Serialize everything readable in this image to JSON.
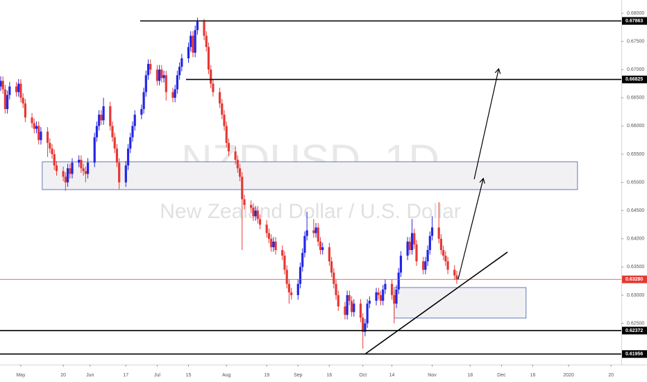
{
  "chart_data": {
    "type": "candlestick",
    "title": "NZDUSD, 1D",
    "subtitle": "New Zealand Dollar / U.S. Dollar",
    "up_color": "#2326e4",
    "down_color": "#e53935",
    "grid": false,
    "xlim": [
      -8.3,
      269.6
    ],
    "xticks": [
      {
        "value": 1,
        "label": "May"
      },
      20,
      {
        "value": 32,
        "label": "Jun"
      },
      {
        "value": 48,
        "label": "17"
      },
      {
        "value": 62,
        "label": "Jul"
      },
      {
        "value": 76,
        "label": "15"
      },
      {
        "value": 93,
        "label": "Aug"
      },
      {
        "value": 111,
        "label": "19"
      },
      {
        "value": 125,
        "label": "Sep"
      },
      {
        "value": 139,
        "label": "16"
      },
      {
        "value": 154,
        "label": "Oct"
      },
      {
        "value": 167,
        "label": "14"
      },
      {
        "value": 185,
        "label": "Nov"
      },
      {
        "value": 202,
        "label": "18"
      },
      {
        "value": 216,
        "label": "Dec"
      },
      {
        "value": 230,
        "label": "16"
      },
      {
        "value": 246,
        "label": "2020"
      },
      {
        "value": 265,
        "label": "20"
      }
    ],
    "ylim": [
      0.61768,
      0.68234
    ],
    "yticks": [
      {
        "value": 0.68,
        "label": "0.68000"
      },
      {
        "value": 0.675,
        "label": "0.67500"
      },
      {
        "value": 0.67,
        "label": "0.67000"
      },
      {
        "value": 0.665,
        "label": "0.66500"
      },
      {
        "value": 0.66,
        "label": "0.66000"
      },
      {
        "value": 0.655,
        "label": "0.65500"
      },
      {
        "value": 0.65,
        "label": "0.65000"
      },
      {
        "value": 0.645,
        "label": "0.64500"
      },
      {
        "value": 0.64,
        "label": "0.64000"
      },
      {
        "value": 0.635,
        "label": "0.63500"
      },
      {
        "value": 0.63,
        "label": "0.63000"
      },
      {
        "value": 0.625,
        "label": "0.62500"
      }
    ],
    "x": [
      -8,
      -7,
      -6,
      -5,
      -4,
      -1,
      0,
      1,
      2,
      3,
      6,
      7,
      8,
      9,
      10,
      13,
      14,
      15,
      16,
      17,
      20,
      21,
      22,
      23,
      24,
      27,
      28,
      29,
      30,
      31,
      34,
      35,
      36,
      37,
      38,
      41,
      42,
      43,
      44,
      45,
      48,
      49,
      50,
      51,
      52,
      55,
      56,
      57,
      58,
      59,
      62,
      63,
      64,
      65,
      66,
      69,
      70,
      71,
      72,
      73,
      76,
      77,
      78,
      79,
      80,
      83,
      84,
      85,
      86,
      87,
      90,
      91,
      92,
      93,
      94,
      97,
      98,
      99,
      100,
      101,
      104,
      105,
      106,
      107,
      108,
      111,
      112,
      113,
      114,
      115,
      118,
      119,
      120,
      121,
      122,
      125,
      126,
      127,
      128,
      129,
      132,
      133,
      134,
      135,
      136,
      139,
      140,
      141,
      142,
      143,
      146,
      147,
      148,
      149,
      150,
      153,
      154,
      155,
      156,
      157,
      160,
      161,
      162,
      163,
      164,
      167,
      168,
      169,
      170,
      171,
      174,
      175,
      176,
      177,
      178,
      181,
      182,
      183,
      184,
      185,
      188,
      189,
      190,
      191,
      192,
      195,
      196
    ],
    "ohlc": [
      [
        0.667,
        0.6688,
        0.6662,
        0.668
      ],
      [
        0.668,
        0.6688,
        0.6657,
        0.6665
      ],
      [
        0.6665,
        0.6673,
        0.6622,
        0.663
      ],
      [
        0.663,
        0.6663,
        0.6622,
        0.6655
      ],
      [
        0.6655,
        0.6678,
        0.6647,
        0.667
      ],
      [
        0.667,
        0.6678,
        0.6652,
        0.666
      ],
      [
        0.666,
        0.6683,
        0.6652,
        0.6675
      ],
      [
        0.6675,
        0.6683,
        0.6642,
        0.665
      ],
      [
        0.665,
        0.6658,
        0.6632,
        0.664
      ],
      [
        0.664,
        0.6648,
        0.6607,
        0.6615
      ],
      [
        0.6615,
        0.6623,
        0.6597,
        0.6605
      ],
      [
        0.6605,
        0.6613,
        0.6587,
        0.6595
      ],
      [
        0.6595,
        0.6608,
        0.6587,
        0.66
      ],
      [
        0.66,
        0.6608,
        0.6567,
        0.6575
      ],
      [
        0.6575,
        0.6598,
        0.6567,
        0.659
      ],
      [
        0.659,
        0.6598,
        0.6545,
        0.657
      ],
      [
        0.657,
        0.6578,
        0.6552,
        0.656
      ],
      [
        0.656,
        0.6568,
        0.6542,
        0.655
      ],
      [
        0.655,
        0.6558,
        0.6522,
        0.653
      ],
      [
        0.653,
        0.6538,
        0.6512,
        0.652
      ],
      [
        0.652,
        0.6528,
        0.6502,
        0.651
      ],
      [
        0.651,
        0.6518,
        0.6485,
        0.65
      ],
      [
        0.65,
        0.6533,
        0.6492,
        0.6525
      ],
      [
        0.6525,
        0.6533,
        0.6507,
        0.6515
      ],
      [
        0.6515,
        0.6543,
        0.6507,
        0.6535
      ],
      [
        0.6535,
        0.6548,
        0.6527,
        0.654
      ],
      [
        0.654,
        0.6548,
        0.6517,
        0.6525
      ],
      [
        0.6525,
        0.6533,
        0.6512,
        0.652
      ],
      [
        0.652,
        0.6528,
        0.65,
        0.6515
      ],
      [
        0.6515,
        0.6543,
        0.6507,
        0.6535
      ],
      [
        0.6535,
        0.6588,
        0.6527,
        0.658
      ],
      [
        0.658,
        0.6608,
        0.6572,
        0.66
      ],
      [
        0.66,
        0.6628,
        0.6592,
        0.662
      ],
      [
        0.662,
        0.6628,
        0.6602,
        0.661
      ],
      [
        0.661,
        0.665,
        0.6602,
        0.6635
      ],
      [
        0.6635,
        0.6643,
        0.6592,
        0.66
      ],
      [
        0.66,
        0.6608,
        0.6572,
        0.658
      ],
      [
        0.658,
        0.6588,
        0.6552,
        0.656
      ],
      [
        0.656,
        0.6568,
        0.6527,
        0.6535
      ],
      [
        0.6535,
        0.6543,
        0.6488,
        0.65
      ],
      [
        0.65,
        0.6538,
        0.6492,
        0.653
      ],
      [
        0.653,
        0.6568,
        0.6522,
        0.656
      ],
      [
        0.656,
        0.6588,
        0.6552,
        0.658
      ],
      [
        0.658,
        0.6608,
        0.6572,
        0.66
      ],
      [
        0.66,
        0.6628,
        0.6592,
        0.662
      ],
      [
        0.662,
        0.6638,
        0.6612,
        0.663
      ],
      [
        0.663,
        0.6668,
        0.6622,
        0.666
      ],
      [
        0.666,
        0.6698,
        0.6652,
        0.669
      ],
      [
        0.669,
        0.6718,
        0.6682,
        0.671
      ],
      [
        0.671,
        0.6718,
        0.6692,
        0.67
      ],
      [
        0.67,
        0.6708,
        0.6672,
        0.668
      ],
      [
        0.668,
        0.6708,
        0.6672,
        0.67
      ],
      [
        0.67,
        0.6708,
        0.6677,
        0.6685
      ],
      [
        0.6685,
        0.6698,
        0.6677,
        0.669
      ],
      [
        0.669,
        0.6698,
        0.6645,
        0.666
      ],
      [
        0.666,
        0.6668,
        0.6642,
        0.665
      ],
      [
        0.665,
        0.6673,
        0.6642,
        0.6665
      ],
      [
        0.6665,
        0.6698,
        0.6657,
        0.669
      ],
      [
        0.669,
        0.6713,
        0.6682,
        0.6705
      ],
      [
        0.6705,
        0.6728,
        0.6697,
        0.672
      ],
      [
        0.672,
        0.6748,
        0.6712,
        0.674
      ],
      [
        0.674,
        0.6768,
        0.6732,
        0.676
      ],
      [
        0.676,
        0.6768,
        0.6722,
        0.673
      ],
      [
        0.673,
        0.6778,
        0.6722,
        0.677
      ],
      [
        0.677,
        0.6792,
        0.6762,
        0.6785
      ],
      [
        0.6785,
        0.679,
        0.6752,
        0.676
      ],
      [
        0.676,
        0.6768,
        0.6732,
        0.674
      ],
      [
        0.674,
        0.6748,
        0.6692,
        0.67
      ],
      [
        0.67,
        0.6708,
        0.6667,
        0.6675
      ],
      [
        0.6675,
        0.6683,
        0.6652,
        0.666
      ],
      [
        0.666,
        0.6668,
        0.6632,
        0.664
      ],
      [
        0.664,
        0.6648,
        0.6612,
        0.662
      ],
      [
        0.662,
        0.6628,
        0.6592,
        0.66
      ],
      [
        0.66,
        0.6608,
        0.6562,
        0.657
      ],
      [
        0.657,
        0.6578,
        0.6547,
        0.6555
      ],
      [
        0.6555,
        0.6563,
        0.6532,
        0.654
      ],
      [
        0.654,
        0.6548,
        0.6517,
        0.6525
      ],
      [
        0.6525,
        0.6533,
        0.6502,
        0.651
      ],
      [
        0.651,
        0.6518,
        0.638,
        0.647
      ],
      [
        0.647,
        0.6478,
        0.6452,
        0.646
      ],
      [
        0.646,
        0.6468,
        0.6447,
        0.6455
      ],
      [
        0.6455,
        0.6463,
        0.6432,
        0.644
      ],
      [
        0.644,
        0.6458,
        0.6432,
        0.645
      ],
      [
        0.645,
        0.6458,
        0.6427,
        0.6435
      ],
      [
        0.6435,
        0.6443,
        0.6417,
        0.6425
      ],
      [
        0.6425,
        0.6433,
        0.6402,
        0.641
      ],
      [
        0.641,
        0.6418,
        0.6392,
        0.64
      ],
      [
        0.64,
        0.6408,
        0.6377,
        0.6385
      ],
      [
        0.6385,
        0.6403,
        0.6377,
        0.6395
      ],
      [
        0.6395,
        0.6403,
        0.6372,
        0.638
      ],
      [
        0.638,
        0.6388,
        0.6362,
        0.637
      ],
      [
        0.637,
        0.6378,
        0.6337,
        0.6345
      ],
      [
        0.6345,
        0.6353,
        0.6312,
        0.632
      ],
      [
        0.632,
        0.6328,
        0.6285,
        0.6305
      ],
      [
        0.6305,
        0.6313,
        0.6292,
        0.63
      ],
      [
        0.63,
        0.6328,
        0.6292,
        0.632
      ],
      [
        0.632,
        0.6358,
        0.6312,
        0.635
      ],
      [
        0.635,
        0.6383,
        0.6342,
        0.6375
      ],
      [
        0.6375,
        0.6413,
        0.6367,
        0.6405
      ],
      [
        0.6405,
        0.6448,
        0.6397,
        0.6415
      ],
      [
        0.6415,
        0.6435,
        0.6402,
        0.641
      ],
      [
        0.641,
        0.6428,
        0.6402,
        0.642
      ],
      [
        0.642,
        0.6428,
        0.6387,
        0.6395
      ],
      [
        0.6395,
        0.6403,
        0.6372,
        0.638
      ],
      [
        0.638,
        0.6393,
        0.6372,
        0.6385
      ],
      [
        0.6385,
        0.6393,
        0.6352,
        0.636
      ],
      [
        0.636,
        0.6368,
        0.6332,
        0.634
      ],
      [
        0.634,
        0.6348,
        0.6312,
        0.632
      ],
      [
        0.632,
        0.6328,
        0.6292,
        0.63
      ],
      [
        0.63,
        0.6308,
        0.6272,
        0.628
      ],
      [
        0.628,
        0.6288,
        0.6257,
        0.6265
      ],
      [
        0.6265,
        0.6308,
        0.6257,
        0.63
      ],
      [
        0.63,
        0.6308,
        0.6282,
        0.629
      ],
      [
        0.629,
        0.6298,
        0.6262,
        0.627
      ],
      [
        0.627,
        0.6293,
        0.6262,
        0.6285
      ],
      [
        0.6285,
        0.6293,
        0.6252,
        0.626
      ],
      [
        0.626,
        0.6268,
        0.6205,
        0.6235
      ],
      [
        0.6235,
        0.6258,
        0.6227,
        0.625
      ],
      [
        0.625,
        0.6293,
        0.6242,
        0.6285
      ],
      [
        0.6285,
        0.6298,
        0.6277,
        0.629
      ],
      [
        0.629,
        0.6313,
        0.6282,
        0.6305
      ],
      [
        0.6305,
        0.6313,
        0.6292,
        0.63
      ],
      [
        0.63,
        0.6308,
        0.6282,
        0.629
      ],
      [
        0.629,
        0.6318,
        0.6282,
        0.631
      ],
      [
        0.631,
        0.6328,
        0.6302,
        0.632
      ],
      [
        0.632,
        0.6328,
        0.6292,
        0.63
      ],
      [
        0.63,
        0.6308,
        0.625,
        0.6285
      ],
      [
        0.6285,
        0.6318,
        0.6277,
        0.631
      ],
      [
        0.631,
        0.6348,
        0.6302,
        0.634
      ],
      [
        0.634,
        0.6378,
        0.6332,
        0.637
      ],
      [
        0.637,
        0.6403,
        0.6362,
        0.6395
      ],
      [
        0.6395,
        0.6403,
        0.6372,
        0.638
      ],
      [
        0.638,
        0.6435,
        0.6372,
        0.641
      ],
      [
        0.641,
        0.6418,
        0.6382,
        0.639
      ],
      [
        0.639,
        0.6398,
        0.6352,
        0.636
      ],
      [
        0.636,
        0.6368,
        0.6337,
        0.6345
      ],
      [
        0.6345,
        0.6368,
        0.6337,
        0.636
      ],
      [
        0.636,
        0.6388,
        0.6352,
        0.638
      ],
      [
        0.638,
        0.6413,
        0.6372,
        0.6405
      ],
      [
        0.6405,
        0.644,
        0.6397,
        0.642
      ],
      [
        0.642,
        0.6465,
        0.6392,
        0.64
      ],
      [
        0.64,
        0.6408,
        0.6372,
        0.638
      ],
      [
        0.638,
        0.6388,
        0.6362,
        0.637
      ],
      [
        0.637,
        0.6378,
        0.6352,
        0.636
      ],
      [
        0.636,
        0.6368,
        0.6337,
        0.6345
      ],
      [
        0.6345,
        0.6353,
        0.6327,
        0.6335
      ],
      [
        0.6335,
        0.6343,
        0.632,
        0.6328
      ]
    ],
    "levels": [
      {
        "value": 0.67863,
        "label": "0.67863",
        "x_start": 54.4,
        "color": "#000000"
      },
      {
        "value": 0.66825,
        "label": "0.66825",
        "x_start": 74.9,
        "color": "#000000"
      },
      {
        "value": 0.6328,
        "label": "0.63280",
        "x_start": -8.3,
        "color": "#e53935"
      },
      {
        "value": 0.62372,
        "label": "0.62372",
        "x_start": -8.3,
        "color": "#000000"
      },
      {
        "value": 0.61956,
        "label": "0.61956",
        "x_start": -8.3,
        "color": "#000000"
      }
    ],
    "zones": [
      {
        "x": [
          10.6,
          250
        ],
        "y": [
          0.64872,
          0.65365
        ]
      },
      {
        "x": [
          168,
          227
        ],
        "y": [
          0.62594,
          0.63135
        ]
      }
    ],
    "trendlines": [
      {
        "x": [
          155,
          218.7
        ],
        "y": [
          0.61956,
          0.63764
        ]
      }
    ],
    "arrows": [
      {
        "x": [
          196.6,
          207.8
        ],
        "y": [
          0.6328,
          0.65057
        ]
      },
      {
        "x": [
          203.8,
          214.7
        ],
        "y": [
          0.65057,
          0.67002
        ]
      }
    ]
  }
}
